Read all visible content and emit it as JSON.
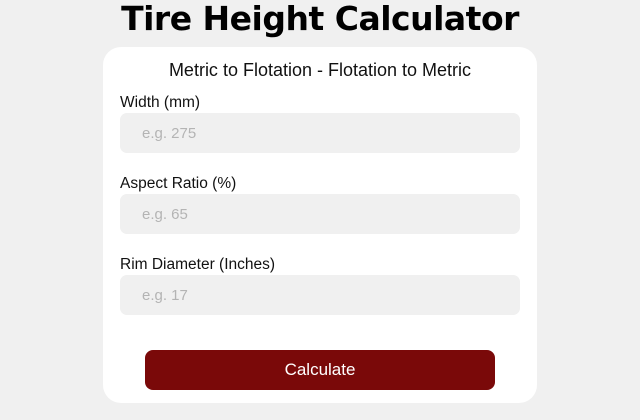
{
  "page": {
    "title": "Tire Height Calculator"
  },
  "form": {
    "subtitle": "Metric to Flotation - Flotation to Metric",
    "fields": [
      {
        "label": "Width (mm)",
        "placeholder": "e.g. 275",
        "value": ""
      },
      {
        "label": "Aspect Ratio (%)",
        "placeholder": "e.g. 65",
        "value": ""
      },
      {
        "label": "Rim Diameter (Inches)",
        "placeholder": "e.g. 17",
        "value": ""
      }
    ],
    "submit_label": "Calculate"
  },
  "colors": {
    "accent": "#7a0909",
    "background": "#f0f0f0",
    "card": "#ffffff"
  }
}
